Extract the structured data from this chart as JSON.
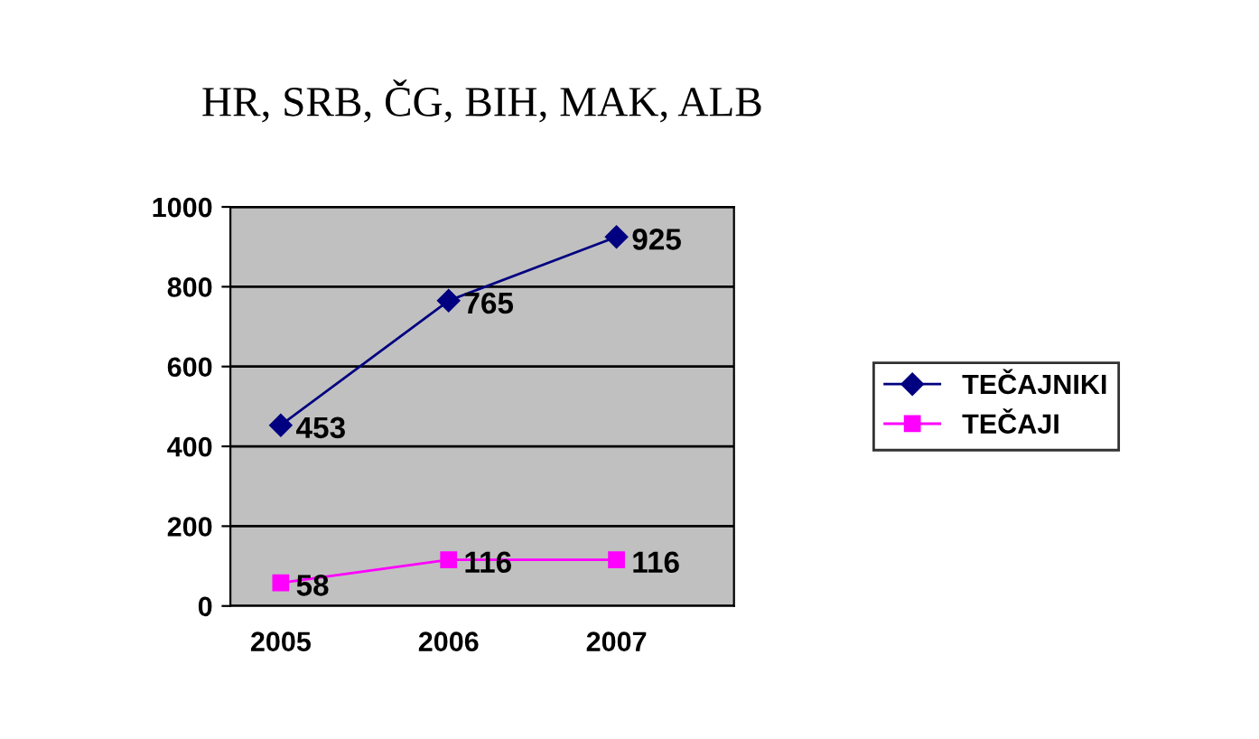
{
  "chart_data": {
    "type": "line",
    "title": "HR, SRB, ČG, BIH, MAK, ALB",
    "categories": [
      "2005",
      "2006",
      "2007"
    ],
    "series": [
      {
        "name": "TEČAJNIKI",
        "color": "#000080",
        "values": [
          453,
          765,
          925
        ],
        "marker": "diamond"
      },
      {
        "name": "TEČAJI",
        "color": "#ff00ff",
        "values": [
          58,
          116,
          116
        ],
        "marker": "square"
      }
    ],
    "ylim": [
      0,
      1000
    ],
    "yticks": [
      0,
      200,
      400,
      600,
      800,
      1000
    ],
    "grid": "y",
    "legend": "right",
    "data_labels": true
  }
}
